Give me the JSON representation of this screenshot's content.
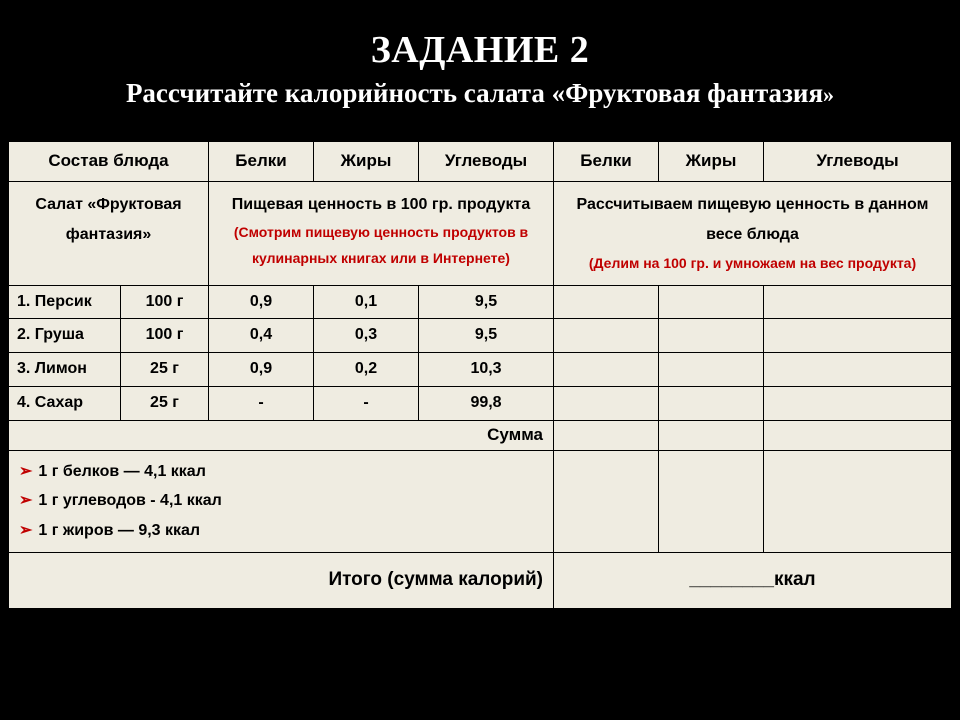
{
  "header": {
    "title": "ЗАДАНИЕ 2",
    "subtitle_main": "Рассчитайте калорийность салата «Фруктовая фантазия",
    "subtitle_trail": "»"
  },
  "table": {
    "head": {
      "col1": "Состав блюда",
      "col_p": "Белки",
      "col_f": "Жиры",
      "col_c": "Углеводы"
    },
    "desc": {
      "salad": "Салат «Фруктовая фантазия»",
      "group1_title": "Пищевая ценность в 100 гр. продукта",
      "group1_note": "(Смотрим пищевую ценность продуктов в кулинарных книгах или в Интернете)",
      "group2_title": "Рассчитываем пищевую ценность в данном весе блюда",
      "group2_note": "(Делим на 100 гр. и умножаем на вес продукта)"
    },
    "rows": [
      {
        "name": "1. Персик",
        "amt": "100 г",
        "p": "0,9",
        "f": "0,1",
        "c": "9,5"
      },
      {
        "name": "2. Груша",
        "amt": "100 г",
        "p": "0,4",
        "f": "0,3",
        "c": "9,5"
      },
      {
        "name": "3. Лимон",
        "amt": "25 г",
        "p": "0,9",
        "f": "0,2",
        "c": "10,3"
      },
      {
        "name": "4. Сахар",
        "amt": "25 г",
        "p": "-",
        "f": "-",
        "c": "99,8"
      }
    ],
    "sum_label": "Сумма",
    "kcal": {
      "l1": "1 г белков — 4,1 ккал",
      "l2": "1 г углеводов - 4,1 ккал",
      "l3": "1 г жиров — 9,3 ккал"
    },
    "total": {
      "label": "Итого (сумма калорий)",
      "result": "________ккал"
    }
  },
  "style": {
    "bg_page": "#000000",
    "bg_table": "#efece1",
    "accent_red": "#c00000",
    "title_color": "#ffffff",
    "font_title": "Times New Roman",
    "font_body": "Verdana",
    "title_fontsize": 38,
    "subtitle_fontsize": 27,
    "cell_fontsize": 16,
    "header_fontsize": 17,
    "total_fontsize": 19,
    "border_color": "#000000"
  }
}
